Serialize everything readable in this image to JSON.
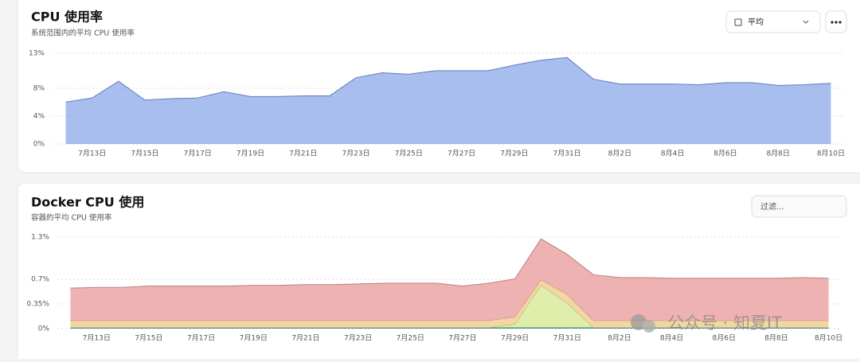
{
  "chart_data": [
    {
      "type": "area",
      "title": "CPU 使用率",
      "subtitle": "系统范围内的平均 CPU 使用率",
      "categories": [
        null,
        "7月13日",
        null,
        "7月15日",
        null,
        "7月17日",
        null,
        "7月19日",
        null,
        "7月21日",
        null,
        "7月23日",
        null,
        "7月25日",
        null,
        "7月27日",
        null,
        "7月29日",
        null,
        "7月31日",
        null,
        "8月2日",
        null,
        "8月4日",
        null,
        "8月6日",
        null,
        "8月8日",
        null,
        "8月10日"
      ],
      "values": [
        6.0,
        6.6,
        9.0,
        6.3,
        6.5,
        6.6,
        7.5,
        6.8,
        6.8,
        6.9,
        6.9,
        9.5,
        10.2,
        10.0,
        10.5,
        10.5,
        10.5,
        11.3,
        12.0,
        12.4,
        9.3,
        8.6,
        8.6,
        8.6,
        8.5,
        8.8,
        8.8,
        8.4,
        8.5,
        8.7
      ],
      "color": "#7f9fe8",
      "ylim": [
        0,
        13
      ],
      "yticks": [
        {
          "value": 0,
          "label": "0%"
        },
        {
          "value": 4,
          "label": "4%"
        },
        {
          "value": 8,
          "label": "8%"
        },
        {
          "value": 13,
          "label": "13%"
        }
      ],
      "grid": true
    },
    {
      "type": "stacked_area",
      "title": "Docker CPU 使用",
      "subtitle": "容器的平均 CPU 使用率",
      "categories": [
        null,
        "7月13日",
        null,
        "7月15日",
        null,
        "7月17日",
        null,
        "7月19日",
        null,
        "7月21日",
        null,
        "7月23日",
        null,
        "7月25日",
        null,
        "7月27日",
        null,
        "7月29日",
        null,
        "7月31日",
        null,
        "8月2日",
        null,
        "8月4日",
        null,
        "8月6日",
        null,
        "8月8日",
        null,
        "8月10日"
      ],
      "series": [
        {
          "color": "#4a8fd6",
          "values": [
            0.005,
            0.005,
            0.005,
            0.005,
            0.005,
            0.005,
            0.005,
            0.005,
            0.005,
            0.005,
            0.005,
            0.005,
            0.005,
            0.005,
            0.005,
            0.005,
            0.005,
            0.005,
            0.005,
            0.005,
            0.005,
            0.005,
            0.005,
            0.005,
            0.005,
            0.005,
            0.005,
            0.005,
            0.005,
            0.005
          ]
        },
        {
          "color": "#4cc36a",
          "values": [
            0.01,
            0.01,
            0.01,
            0.01,
            0.01,
            0.01,
            0.01,
            0.01,
            0.01,
            0.01,
            0.01,
            0.01,
            0.01,
            0.01,
            0.01,
            0.01,
            0.01,
            0.01,
            0.01,
            0.01,
            0.01,
            0.01,
            0.01,
            0.01,
            0.01,
            0.01,
            0.01,
            0.01,
            0.01,
            0.01
          ]
        },
        {
          "color": "#d9ec9c",
          "values": [
            0,
            0,
            0,
            0,
            0,
            0,
            0,
            0,
            0,
            0,
            0,
            0,
            0,
            0,
            0,
            0,
            0,
            0.05,
            0.6,
            0.35,
            0,
            0,
            0,
            0,
            0,
            0,
            0,
            0,
            0,
            0
          ]
        },
        {
          "color": "#f2cf94",
          "values": [
            0.1,
            0.1,
            0.1,
            0.1,
            0.1,
            0.1,
            0.1,
            0.1,
            0.1,
            0.1,
            0.1,
            0.1,
            0.1,
            0.1,
            0.1,
            0.1,
            0.1,
            0.1,
            0.08,
            0.12,
            0.1,
            0.1,
            0.1,
            0.1,
            0.1,
            0.1,
            0.1,
            0.1,
            0.1,
            0.1
          ]
        },
        {
          "color": "#eba5a5",
          "values": [
            0.46,
            0.47,
            0.47,
            0.49,
            0.49,
            0.49,
            0.49,
            0.5,
            0.5,
            0.51,
            0.51,
            0.52,
            0.53,
            0.53,
            0.53,
            0.49,
            0.53,
            0.54,
            0.58,
            0.57,
            0.65,
            0.61,
            0.61,
            0.6,
            0.6,
            0.6,
            0.6,
            0.6,
            0.61,
            0.6
          ]
        }
      ],
      "ylim": [
        0,
        1.3
      ],
      "yticks": [
        {
          "value": 0,
          "label": "0%"
        },
        {
          "value": 0.35,
          "label": "0.35%"
        },
        {
          "value": 0.7,
          "label": "0.7%"
        },
        {
          "value": 1.3,
          "label": "1.3%"
        }
      ],
      "grid": true
    }
  ],
  "controls": {
    "aggregate": "平均",
    "filter_placeholder": "过滤..."
  },
  "watermark": "公众号 · 知夏IT"
}
